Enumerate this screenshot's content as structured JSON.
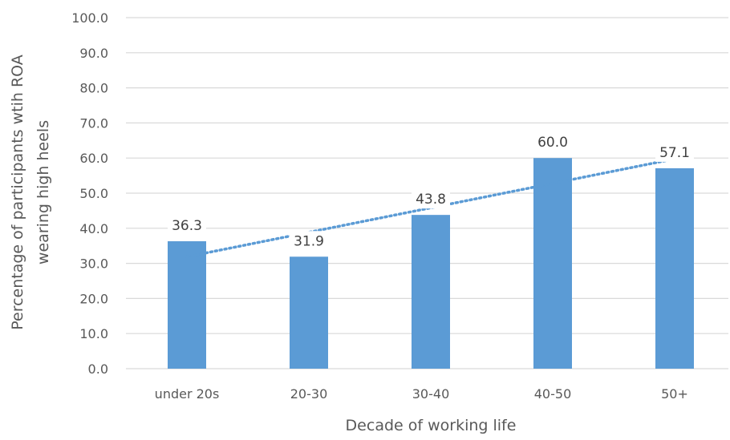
{
  "chart_data": {
    "type": "bar",
    "categories": [
      "under 20s",
      "20-30",
      "30-40",
      "40-50",
      "50+"
    ],
    "values": [
      36.3,
      31.9,
      43.8,
      60.0,
      57.1
    ],
    "value_labels": [
      "36.3",
      "31.9",
      "43.8",
      "60.0",
      "57.1"
    ],
    "title": "",
    "xlabel": "Decade of working life",
    "ylabel_lines": [
      "Percentage of participants wtih ROA",
      "wearing high heels"
    ],
    "ylim": [
      0,
      100
    ],
    "yticks": [
      "0.0",
      "10.0",
      "20.0",
      "30.0",
      "40.0",
      "50.0",
      "60.0",
      "70.0",
      "80.0",
      "90.0",
      "100.0"
    ],
    "grid": true,
    "legend": "none",
    "trendline": {
      "type": "linear",
      "style": "dotted"
    },
    "colors": {
      "bar": "#5b9bd5",
      "trendline": "#5b9bd5",
      "grid": "#d9d9d9",
      "text": "#595959"
    }
  }
}
